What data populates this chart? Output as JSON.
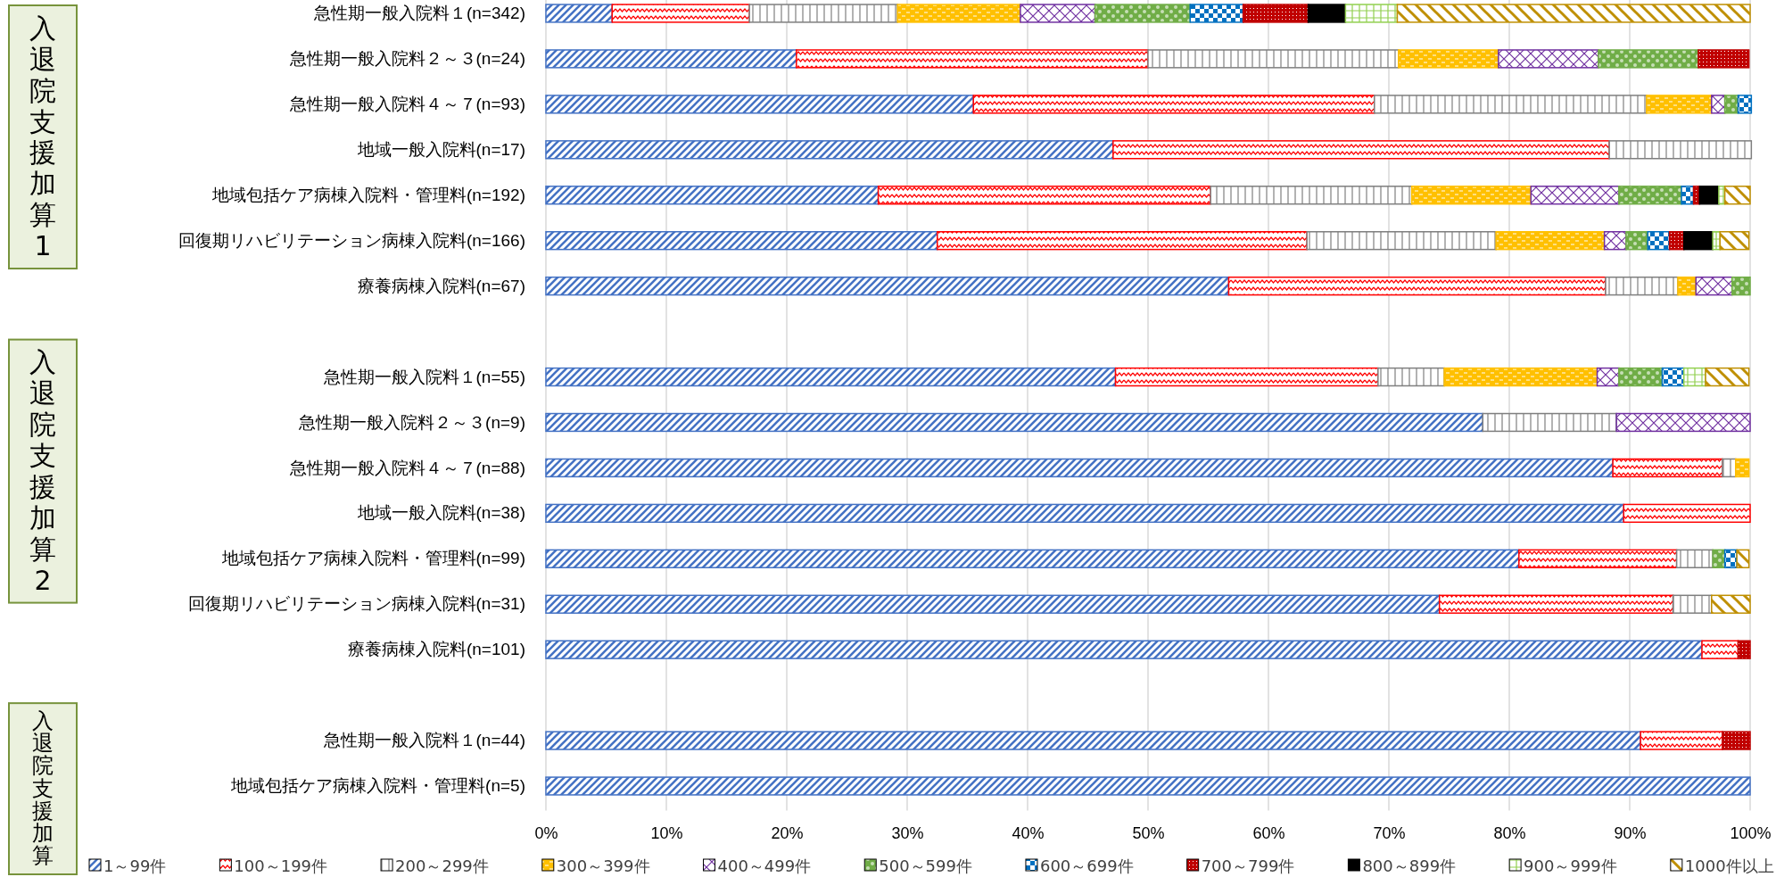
{
  "chart_data": {
    "type": "bar",
    "orientation": "horizontal",
    "stacked": true,
    "categories": [
      "急性期一般入院料１(n=342)",
      "急性期一般入院料２～３(n=24)",
      "急性期一般入院料４～７(n=93)",
      "地域一般入院料(n=17)",
      "地域包括ケア病棟入院料・管理料(n=192)",
      "回復期リハビリテーション病棟入院料(n=166)",
      "療養病棟入院料(n=67)",
      null,
      "急性期一般入院料１(n=55)",
      "急性期一般入院料２～３(n=9)",
      "急性期一般入院料４～７(n=88)",
      "地域一般入院料(n=38)",
      "地域包括ケア病棟入院料・管理料(n=99)",
      "回復期リハビリテーション病棟入院料(n=31)",
      "療養病棟入院料(n=101)",
      null,
      "急性期一般入院料１(n=44)",
      "地域包括ケア病棟入院料・管理料(n=5)"
    ],
    "series": [
      {
        "name": "1～99件",
        "color": "#4472c4",
        "values": [
          5.5,
          20.8,
          35.5,
          47.1,
          27.6,
          32.5,
          56.7,
          null,
          47.3,
          77.8,
          88.6,
          89.5,
          80.8,
          74.2,
          96.0,
          null,
          90.9,
          100
        ]
      },
      {
        "name": "100～199件",
        "color": "#ff0000",
        "values": [
          11.4,
          29.2,
          33.3,
          41.2,
          27.6,
          30.7,
          31.3,
          null,
          21.8,
          0,
          9.1,
          10.5,
          13.1,
          19.4,
          3.0,
          null,
          6.8,
          0
        ]
      },
      {
        "name": "200～299件",
        "color": "#7f7f7f",
        "values": [
          12.3,
          20.8,
          22.6,
          11.8,
          16.7,
          15.7,
          6.0,
          null,
          5.5,
          11.1,
          1.1,
          0,
          3.0,
          3.2,
          0,
          null,
          0,
          0
        ]
      },
      {
        "name": "300～399件",
        "color": "#ffc000",
        "values": [
          10.2,
          8.3,
          5.4,
          0,
          9.9,
          9.0,
          1.5,
          null,
          12.7,
          0,
          1.1,
          0,
          0,
          0,
          0,
          null,
          0,
          0
        ]
      },
      {
        "name": "400～499件",
        "color": "#7030a0",
        "values": [
          6.2,
          8.3,
          1.1,
          0,
          7.3,
          1.8,
          3.0,
          null,
          1.8,
          11.1,
          0,
          0,
          0,
          0,
          0,
          null,
          0,
          0
        ]
      },
      {
        "name": "500～599件",
        "color": "#70ad47",
        "values": [
          7.9,
          8.3,
          1.1,
          0,
          5.2,
          1.8,
          1.5,
          null,
          3.6,
          0,
          0,
          0,
          1.0,
          0,
          0,
          null,
          0,
          0
        ]
      },
      {
        "name": "600～699件",
        "color": "#0070c0",
        "values": [
          4.4,
          0,
          1.1,
          0,
          1.0,
          1.8,
          0,
          null,
          1.8,
          0,
          0,
          0,
          1.0,
          0,
          0,
          null,
          0,
          0
        ]
      },
      {
        "name": "700～799件",
        "color": "#c00000",
        "values": [
          5.4,
          4.2,
          0,
          0,
          0.5,
          1.2,
          0,
          null,
          0,
          0,
          0,
          0,
          0,
          0,
          1.0,
          null,
          2.3,
          0
        ]
      },
      {
        "name": "800～899件",
        "color": "#000000",
        "values": [
          3.1,
          0,
          0,
          0,
          1.6,
          2.4,
          0,
          null,
          0,
          0,
          0,
          0,
          0,
          0,
          0,
          null,
          0,
          0
        ]
      },
      {
        "name": "900～999件",
        "color": "#92d050",
        "values": [
          4.3,
          0,
          0,
          0,
          0.5,
          0.6,
          0,
          null,
          1.8,
          0,
          0,
          0,
          0,
          0,
          0,
          null,
          0,
          0
        ]
      },
      {
        "name": "1000件以上",
        "color": "#bf8f00",
        "values": [
          29.3,
          0,
          0,
          0,
          2.1,
          2.4,
          0,
          null,
          3.6,
          0,
          0,
          0,
          1.0,
          3.2,
          0,
          null,
          0,
          0
        ]
      }
    ],
    "xlim": [
      0,
      100
    ],
    "xticks": [
      {
        "value": 0,
        "label": "0%"
      },
      {
        "value": 10,
        "label": "10%"
      },
      {
        "value": 20,
        "label": "20%"
      },
      {
        "value": 30,
        "label": "30%"
      },
      {
        "value": 40,
        "label": "40%"
      },
      {
        "value": 50,
        "label": "50%"
      },
      {
        "value": 60,
        "label": "60%"
      },
      {
        "value": 70,
        "label": "70%"
      },
      {
        "value": 80,
        "label": "80%"
      },
      {
        "value": 90,
        "label": "90%"
      },
      {
        "value": 100,
        "label": "100%"
      }
    ],
    "grid": "x",
    "legend": "bottom",
    "annotations": [
      "入退院支援加算1",
      "入退院支援加算2",
      "入退院支援加算"
    ]
  }
}
